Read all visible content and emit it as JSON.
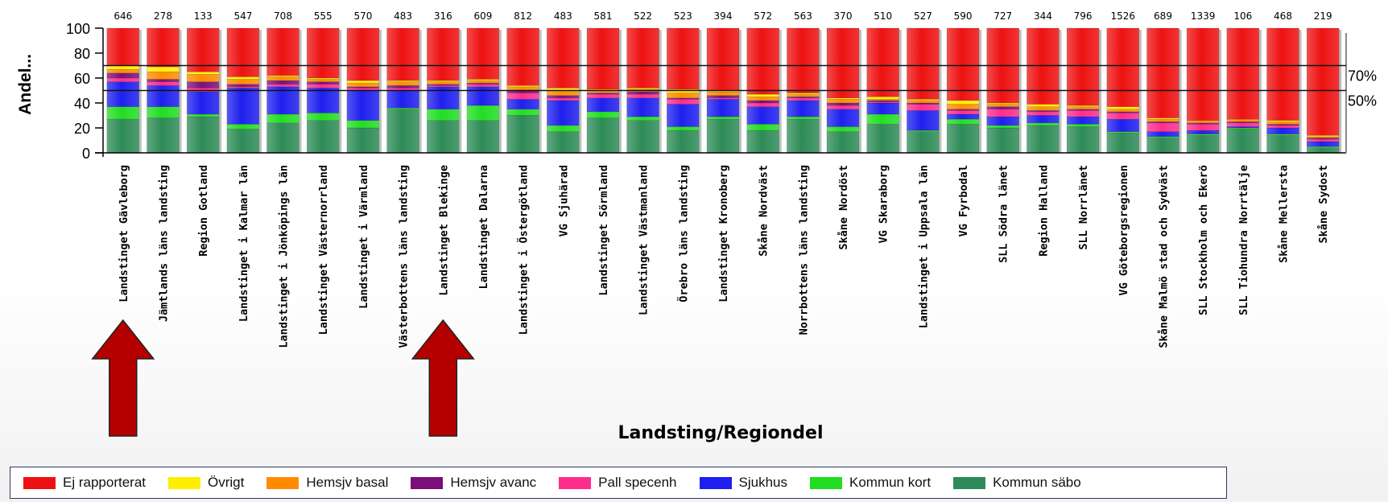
{
  "chart_data": {
    "type": "bar",
    "stacked": true,
    "xlabel": "Landsting/Regiondel",
    "ylabel": "Andel...",
    "ylim": [
      0,
      100
    ],
    "yticks": [
      0,
      20,
      40,
      60,
      80,
      100
    ],
    "reference_lines": [
      {
        "value": 70,
        "label": "70%"
      },
      {
        "value": 50,
        "label": "50%"
      }
    ],
    "categories": [
      "Landstinget Gävleborg",
      "Jämtlands läns landsting",
      "Region Gotland",
      "Landstinget i Kalmar län",
      "Landstinget i Jönköpings län",
      "Landstinget Västernorrland",
      "Landstinget i Värmland",
      "Västerbottens läns landsting",
      "Landstinget Blekinge",
      "Landstinget Dalarna",
      "Landstinget i Östergötland",
      "VG Sjuhärad",
      "Landstinget Sörmland",
      "Landstinget Västmanland",
      "Örebro läns landsting",
      "Landstinget Kronoberg",
      "Skåne Nordväst",
      "Norrbottens läns landsting",
      "Skåne Nordöst",
      "VG Skaraborg",
      "Landstinget i Uppsala län",
      "VG Fyrbodal",
      "SLL Södra länet",
      "Region Halland",
      "SLL Norrlänet",
      "VG Göteborgsregionen",
      "Skåne Malmö stad och Sydväst",
      "SLL Stockholm och Ekerö",
      "SLL Tiohundra Norrtälje",
      "Skåne Mellersta",
      "Skåne Sydost"
    ],
    "counts": [
      "646",
      "278",
      "133",
      "547",
      "708",
      "555",
      "570",
      "483",
      "316",
      "609",
      "812",
      "483",
      "581",
      "522",
      "523",
      "394",
      "572",
      "563",
      "370",
      "510",
      "527",
      "590",
      "727",
      "344",
      "796",
      "1526",
      "689",
      "1339",
      "106",
      "468",
      "219"
    ],
    "series": [
      {
        "name": "Kommun säbo",
        "color": "#2e8b57",
        "values": [
          27,
          28,
          29,
          19,
          24,
          26,
          20,
          35,
          26,
          26,
          30,
          17,
          28,
          26,
          18,
          27,
          18,
          27,
          17,
          23,
          17,
          23,
          20,
          22,
          21,
          16,
          12,
          14,
          19,
          14,
          4
        ]
      },
      {
        "name": "Kommun kort",
        "color": "#22dd22",
        "values": [
          10,
          9,
          2,
          4,
          7,
          6,
          6,
          1,
          9,
          12,
          5,
          5,
          5,
          3,
          3,
          2,
          5,
          2,
          4,
          8,
          1,
          4,
          2,
          2,
          2,
          1,
          1,
          1,
          1,
          1,
          1
        ]
      },
      {
        "name": "Sjukhus",
        "color": "#1f1fee",
        "values": [
          20,
          17,
          18,
          29,
          22,
          20,
          24,
          14,
          18,
          15,
          8,
          20,
          11,
          15,
          18,
          14,
          14,
          13,
          14,
          9,
          16,
          4,
          7,
          6,
          6,
          10,
          4,
          3,
          1,
          5,
          4
        ]
      },
      {
        "name": "Pall specenh",
        "color": "#ff2d8c",
        "values": [
          3,
          3,
          3,
          1,
          2,
          3,
          2,
          2,
          1,
          2,
          5,
          2,
          3,
          3,
          4,
          1,
          3,
          2,
          3,
          1,
          5,
          3,
          6,
          3,
          5,
          5,
          7,
          5,
          3,
          2,
          2
        ]
      },
      {
        "name": "Hemsjv avanc",
        "color": "#7a0f7a",
        "values": [
          4,
          2,
          5,
          2,
          3,
          2,
          1,
          2,
          1,
          1,
          2,
          2,
          1,
          2,
          1,
          2,
          2,
          1,
          2,
          1,
          1,
          1,
          2,
          1,
          1,
          1,
          1,
          1,
          1,
          1,
          1
        ]
      },
      {
        "name": "Hemsjv basal",
        "color": "#ff8c00",
        "values": [
          3,
          6,
          6,
          4,
          3,
          2,
          3,
          3,
          2,
          2,
          3,
          4,
          2,
          2,
          4,
          3,
          3,
          2,
          3,
          1,
          2,
          4,
          2,
          3,
          2,
          2,
          2,
          2,
          2,
          2,
          1
        ]
      },
      {
        "name": "Övrigt",
        "color": "#ffee00",
        "values": [
          3,
          4,
          2,
          2,
          1,
          1,
          2,
          1,
          1,
          1,
          1,
          2,
          1,
          1,
          3,
          1,
          2,
          1,
          1,
          2,
          1,
          3,
          1,
          2,
          1,
          2,
          1,
          0,
          0,
          1,
          1
        ]
      },
      {
        "name": "Ej rapporterat",
        "color": "#ee1111",
        "values": [
          30,
          31,
          35,
          39,
          38,
          40,
          42,
          42,
          42,
          41,
          46,
          48,
          49,
          48,
          49,
          50,
          53,
          52,
          56,
          55,
          57,
          58,
          60,
          61,
          62,
          63,
          72,
          74,
          73,
          74,
          86
        ]
      }
    ],
    "legend": [
      "Ej rapporterat",
      "Övrigt",
      "Hemsjv basal",
      "Hemsjv avanc",
      "Pall specenh",
      "Sjukhus",
      "Kommun kort",
      "Kommun säbo"
    ],
    "legend_placement": "bottom",
    "grid": false
  },
  "annotations": {
    "arrow_color": "#b40000",
    "arrow_targets": [
      0,
      8
    ]
  }
}
